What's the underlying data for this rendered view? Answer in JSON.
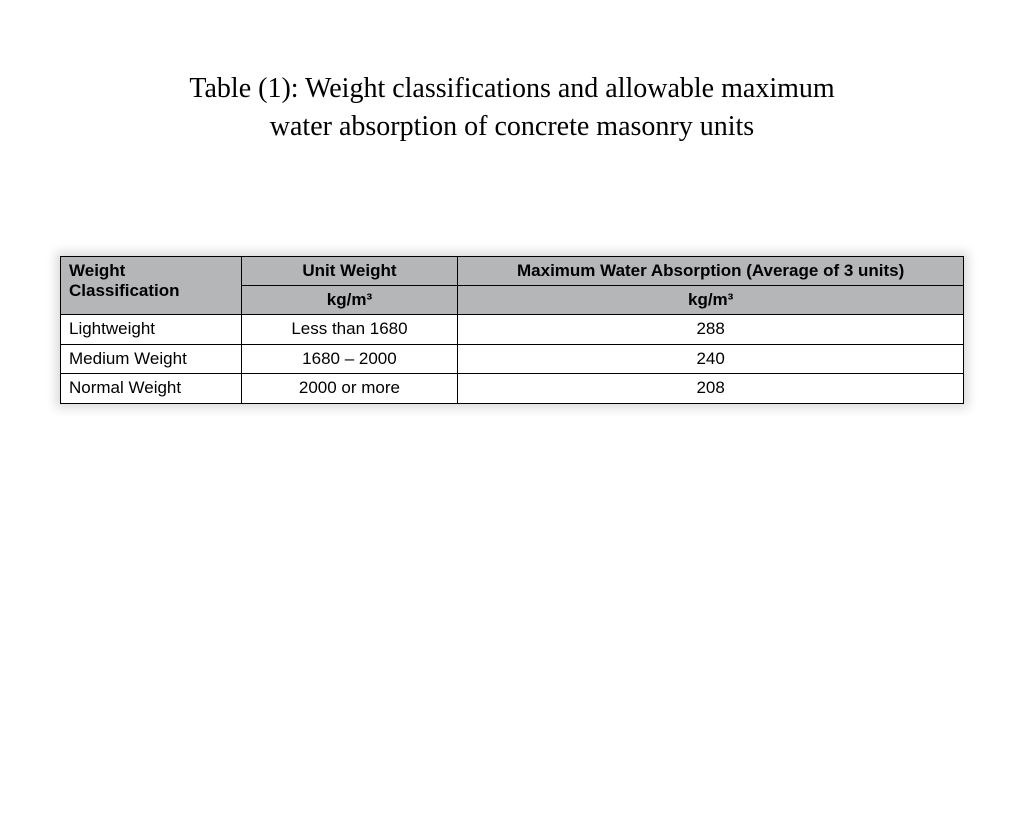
{
  "title_line1": "Table (1): Weight classifications and allowable maximum",
  "title_line2": "water absorption of concrete masonry units",
  "table": {
    "header_bg": "#b5b6b8",
    "border_color": "#000000",
    "col1_header": "Weight Classification",
    "col2_header": "Unit Weight",
    "col3_header": "Maximum Water Absorption (Average of 3 units)",
    "col2_unit": "kg/m³",
    "col3_unit": "kg/m³",
    "rows": [
      {
        "classification": "Lightweight",
        "unit_weight": "Less than 1680",
        "absorption": "288"
      },
      {
        "classification": "Medium Weight",
        "unit_weight": "1680 – 2000",
        "absorption": "240"
      },
      {
        "classification": "Normal Weight",
        "unit_weight": "2000 or more",
        "absorption": "208"
      }
    ],
    "col_widths_pct": [
      20,
      24,
      56
    ],
    "header_fontsize": 17,
    "cell_fontsize": 17
  }
}
